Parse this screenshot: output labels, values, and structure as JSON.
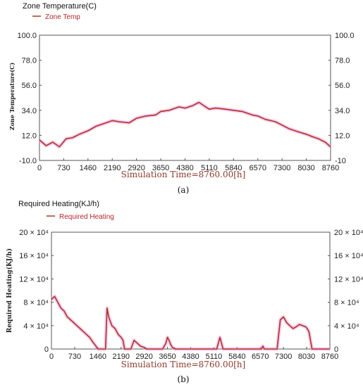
{
  "chart_data": [
    {
      "type": "line",
      "panel_label": "(a)",
      "title": "Zone Temperature(C)",
      "legend": [
        "Zone Temp"
      ],
      "xlabel": "Simulation Time=8760.00[h]",
      "ylabel": "Zone Temperature(C)",
      "xlim": [
        0,
        8760
      ],
      "ylim": [
        -10,
        100
      ],
      "x_ticks": [
        "0",
        "730",
        "1460",
        "2190",
        "2920",
        "3650",
        "4380",
        "5110",
        "5840",
        "6570",
        "7300",
        "8030",
        "8760"
      ],
      "y_ticks_left": [
        "100.0",
        "78.0",
        "56.0",
        "34.0",
        "12.0",
        "-10.0"
      ],
      "y_ticks_right": [
        "100.0",
        "78.0",
        "56.0",
        "34.0",
        "12.0",
        "-10"
      ],
      "series": [
        {
          "name": "Zone Temp",
          "x": [
            0,
            200,
            400,
            600,
            800,
            1000,
            1200,
            1460,
            1700,
            2000,
            2190,
            2400,
            2700,
            2920,
            3200,
            3500,
            3650,
            3900,
            4200,
            4380,
            4600,
            4800,
            5000,
            5110,
            5300,
            5600,
            5840,
            6100,
            6400,
            6570,
            6800,
            7100,
            7300,
            7500,
            7800,
            8030,
            8200,
            8400,
            8600,
            8760
          ],
          "y": [
            8,
            3,
            6,
            2,
            9,
            10,
            13,
            16,
            20,
            23,
            25,
            24,
            23,
            27,
            29,
            30,
            33,
            34,
            37,
            36,
            38,
            41,
            37,
            35,
            36,
            35,
            34,
            33,
            30,
            29,
            26,
            24,
            21,
            18,
            15,
            13,
            11,
            9,
            6,
            2
          ]
        }
      ]
    },
    {
      "type": "line",
      "panel_label": "(b)",
      "title": "Required Heating(KJ/h)",
      "legend": [
        "Required Heating"
      ],
      "xlabel": "Simulation Time=8760.00[h]",
      "ylabel": "Required Heating(KJ/h)",
      "xlim": [
        0,
        8760
      ],
      "ylim": [
        0,
        200000
      ],
      "x_ticks": [
        "0",
        "730",
        "1460",
        "2190",
        "2920",
        "3650",
        "4380",
        "5110",
        "5840",
        "6570",
        "7300",
        "8030",
        "8760"
      ],
      "y_ticks": [
        "0",
        "4 × 10⁴",
        "8 × 10⁴",
        "12 × 10⁴",
        "16 × 10⁴",
        "20 × 10⁴"
      ],
      "y_tick_values": [
        0,
        40000,
        80000,
        120000,
        160000,
        200000
      ],
      "series": [
        {
          "name": "Required Heating",
          "x": [
            0,
            100,
            200,
            300,
            400,
            500,
            600,
            700,
            800,
            900,
            1000,
            1100,
            1200,
            1300,
            1400,
            1460,
            1500,
            1700,
            1750,
            1800,
            1900,
            2000,
            2100,
            2190,
            2250,
            2300,
            2500,
            2600,
            2700,
            2800,
            2900,
            3000,
            3500,
            3600,
            3650,
            3700,
            3750,
            3800,
            3900,
            5000,
            5200,
            5300,
            5350,
            5400,
            6500,
            6600,
            6650,
            6700,
            7000,
            7100,
            7200,
            7300,
            7400,
            7500,
            7600,
            7700,
            7800,
            7900,
            8000,
            8030,
            8100,
            8200,
            8760
          ],
          "y": [
            85000,
            90000,
            80000,
            70000,
            65000,
            55000,
            50000,
            45000,
            40000,
            35000,
            30000,
            25000,
            20000,
            12000,
            5000,
            0,
            0,
            0,
            70000,
            55000,
            40000,
            35000,
            25000,
            20000,
            15000,
            0,
            0,
            15000,
            10000,
            5000,
            3000,
            0,
            0,
            10000,
            20000,
            15000,
            8000,
            3000,
            0,
            0,
            0,
            20000,
            10000,
            0,
            0,
            0,
            5000,
            0,
            0,
            0,
            50000,
            55000,
            45000,
            40000,
            35000,
            38000,
            42000,
            40000,
            38000,
            36000,
            30000,
            0,
            0
          ]
        }
      ]
    }
  ],
  "colors": {
    "line": "#a33a20",
    "band": "#ff9ee6",
    "frame": "#555555"
  }
}
